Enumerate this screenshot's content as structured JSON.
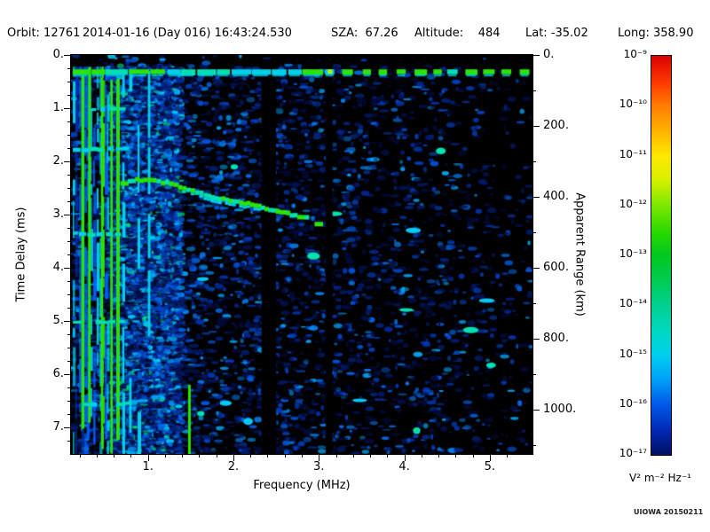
{
  "header": {
    "orbit": "Orbit: 12761",
    "datetime": "2014-01-16 (Day 016) 16:43:24.530",
    "sza": "SZA:  67.26",
    "altitude": "Altitude:    484",
    "lat": "Lat: -35.02",
    "long": "Long: 358.90"
  },
  "footer": {
    "watermark": "UIOWA 20150211"
  },
  "chart_data": {
    "type": "heatmap",
    "title": "Radar sounder ionogram spectrogram",
    "xlabel": "Frequency (MHz)",
    "ylabel_left": "Time Delay (ms)",
    "ylabel_right": "Apparent Range (km)",
    "x_range_mhz": [
      0.1,
      5.5
    ],
    "x_ticks_mhz": [
      1,
      2,
      3,
      4,
      5
    ],
    "x_tick_labels": [
      "1.",
      "2.",
      "3.",
      "4.",
      "5."
    ],
    "y_range_ms": [
      0,
      7.5
    ],
    "y_ticks_ms": [
      0,
      1,
      2,
      3,
      4,
      5,
      6,
      7
    ],
    "y_tick_labels": [
      "0.",
      "1.",
      "2.",
      "3.",
      "4.",
      "5.",
      "6.",
      "7."
    ],
    "right_axis_km_per_ms": 150,
    "right_ticks_km": [
      0,
      200,
      400,
      600,
      800,
      1000
    ],
    "right_tick_labels": [
      "0.",
      "200.",
      "400.",
      "600.",
      "800.",
      "1000."
    ],
    "grid": false,
    "colorbar": {
      "unit_label": "V² m⁻² Hz⁻¹",
      "tick_labels": [
        "10⁻⁹",
        "10⁻¹⁰",
        "10⁻¹¹",
        "10⁻¹²",
        "10⁻¹³",
        "10⁻¹⁴",
        "10⁻¹⁵",
        "10⁻¹⁶",
        "10⁻¹⁷"
      ],
      "min_exp": -17,
      "max_exp": -9,
      "gradient_stops": [
        {
          "pos": 0,
          "color": "#dc0000"
        },
        {
          "pos": 7,
          "color": "#ff3c00"
        },
        {
          "pos": 12.5,
          "color": "#ff7c00"
        },
        {
          "pos": 19,
          "color": "#ffb400"
        },
        {
          "pos": 25,
          "color": "#ffe800"
        },
        {
          "pos": 31,
          "color": "#d8f000"
        },
        {
          "pos": 37.5,
          "color": "#7ce800"
        },
        {
          "pos": 44,
          "color": "#2cd800"
        },
        {
          "pos": 50,
          "color": "#00c81e"
        },
        {
          "pos": 56,
          "color": "#00cc50"
        },
        {
          "pos": 62.5,
          "color": "#00d090"
        },
        {
          "pos": 69,
          "color": "#00d8c0"
        },
        {
          "pos": 75,
          "color": "#00d0f0"
        },
        {
          "pos": 81,
          "color": "#00a0f8"
        },
        {
          "pos": 87.5,
          "color": "#0058e8"
        },
        {
          "pos": 94,
          "color": "#0028b4"
        },
        {
          "pos": 100,
          "color": "#001060"
        }
      ]
    },
    "features": {
      "colors": {
        "green": "#2ce400",
        "bright_green": "#3af000",
        "cyan": "#00d0e8",
        "pale_cyan": "#00c8f8",
        "teal": "#00e0b0",
        "yellow_green": "#b8f000",
        "background": "#000000"
      },
      "surface_echo": {
        "delay_ms": 0.32,
        "freq_start_mhz": 0.12,
        "freq_end_mhz": 5.45,
        "dashed_above_mhz": 3.0
      },
      "plasma_band": {
        "freq_min_mhz": 0.1,
        "freq_max_mhz": 0.55
      },
      "tall_green_lines_mhz": [
        0.22,
        0.3,
        0.45,
        0.56,
        0.63
      ],
      "tall_cyan_lines_mhz": [
        0.7,
        0.78,
        0.88,
        1.0
      ],
      "harmonic_rows_ms": [
        1.0,
        1.75,
        3.35,
        5.0,
        6.55
      ],
      "ionosphere_trace_mhz_ms": [
        [
          0.68,
          2.42
        ],
        [
          0.85,
          2.35
        ],
        [
          1.05,
          2.37
        ],
        [
          1.25,
          2.42
        ],
        [
          1.45,
          2.52
        ],
        [
          1.65,
          2.63
        ],
        [
          1.9,
          2.73
        ],
        [
          2.15,
          2.8
        ],
        [
          2.45,
          2.92
        ],
        [
          2.7,
          3.02
        ],
        [
          2.88,
          3.08
        ]
      ],
      "trace_tail_segment": {
        "freq_mhz": [
          2.95,
          3.05
        ],
        "delay_ms": 3.18
      },
      "dark_bands_mhz": [
        [
          2.33,
          2.5
        ],
        [
          3.08,
          3.16
        ]
      ],
      "green_column_bottom": {
        "freq_mhz": 1.47,
        "delay_ms": [
          6.2,
          7.5
        ]
      },
      "noise": {
        "dense_below_mhz": 1.6,
        "palette": [
          "#000b38",
          "#00114e",
          "#001a6e",
          "#00268c",
          "#0033aa",
          "#0041c2",
          "#0052d6",
          "#0066e6",
          "#0080f0",
          "#00a6f6"
        ]
      }
    }
  }
}
